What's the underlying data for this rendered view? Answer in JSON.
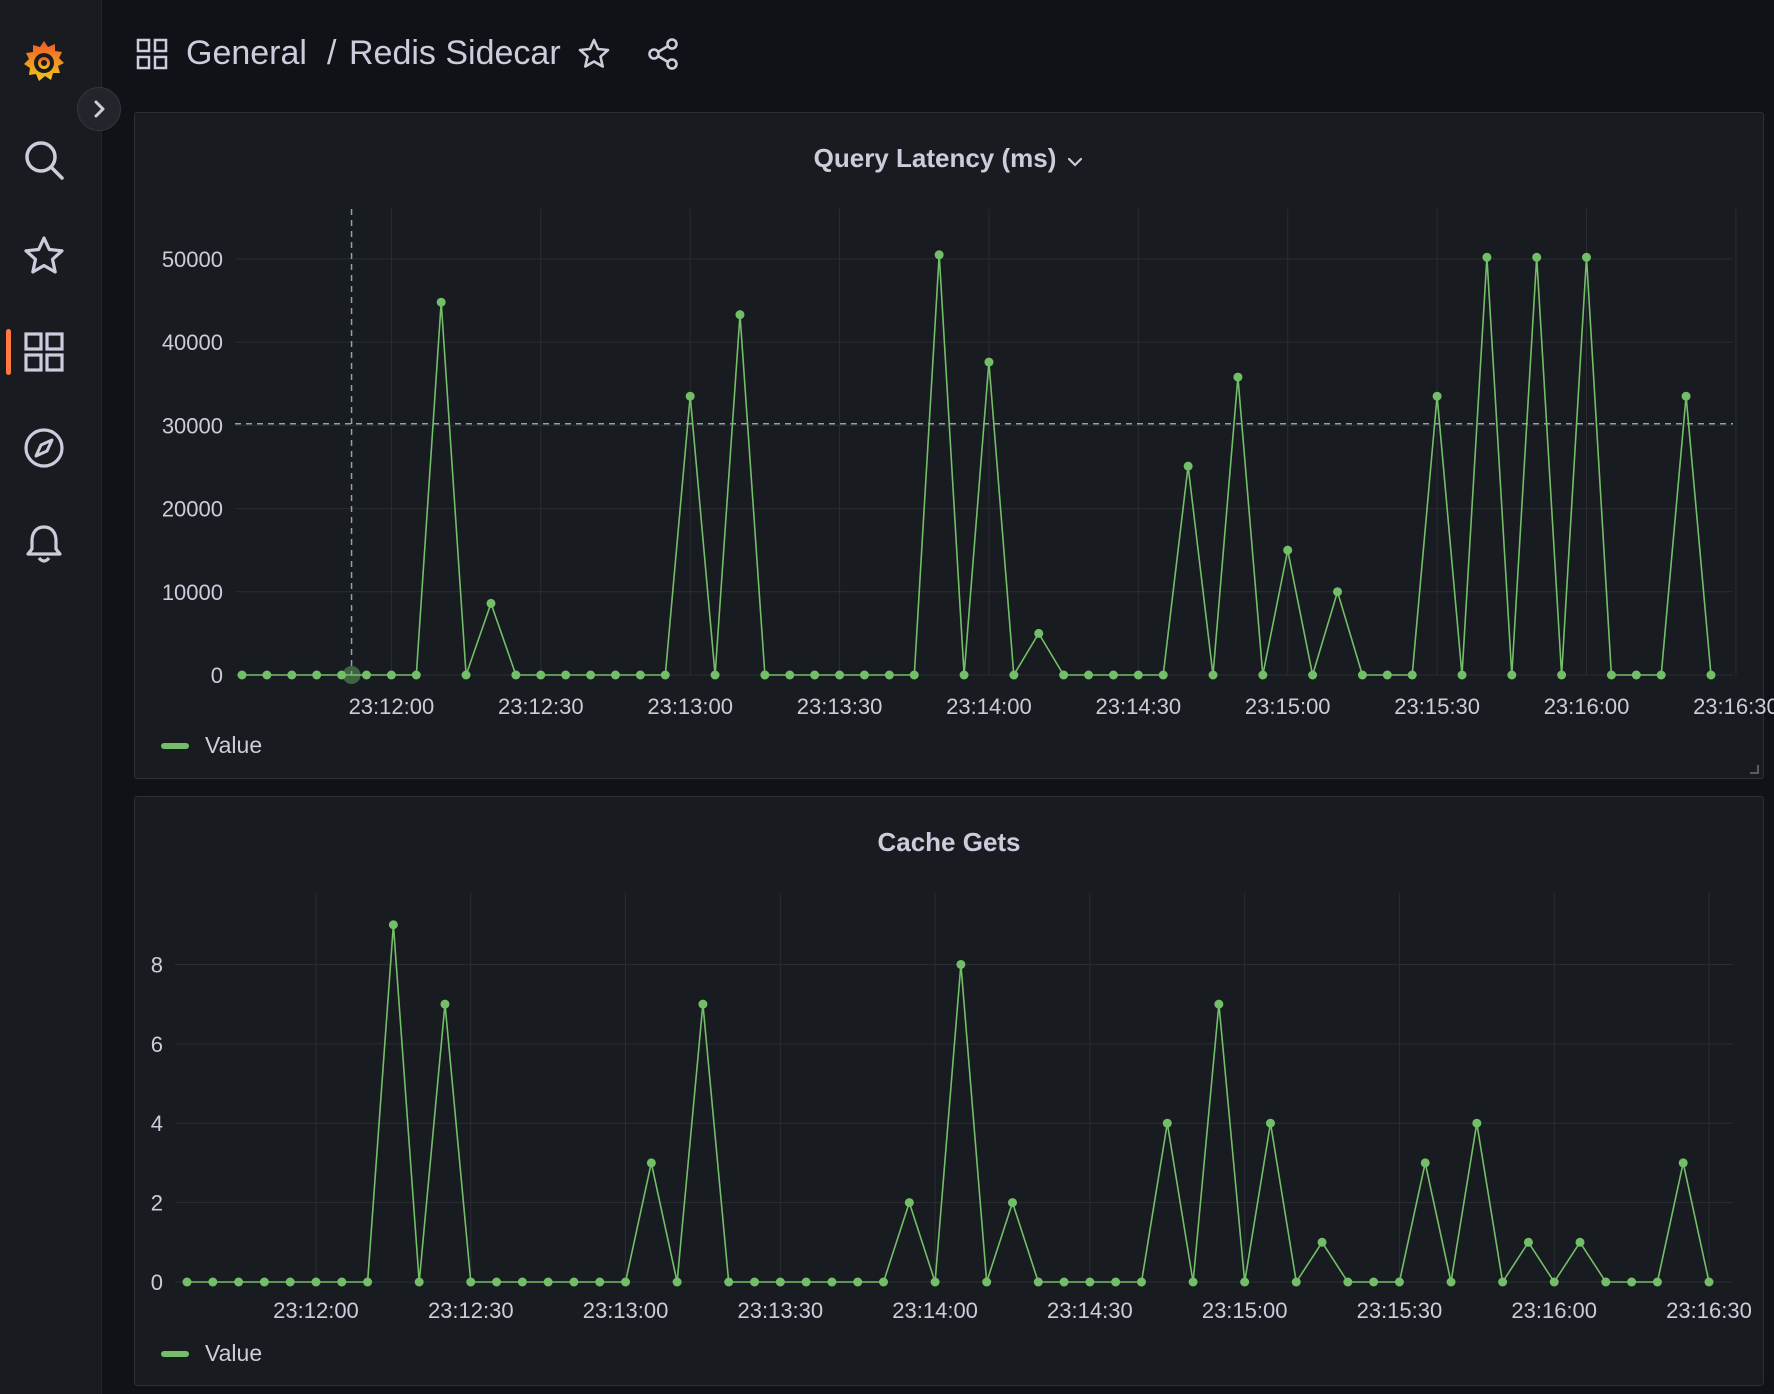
{
  "breadcrumb": {
    "folder": "General",
    "separator": "/",
    "dashboard": "Redis Sidecar"
  },
  "icons": {
    "logo": "grafana-logo",
    "search": "search-icon",
    "starred": "star-icon",
    "dashboards": "dashboards-grid-icon",
    "explore": "compass-icon",
    "alerting": "bell-icon",
    "expand": "chevron-right-icon",
    "share": "share-icon",
    "panel_menu": "chevron-down-icon"
  },
  "colors": {
    "series": "#73bf69",
    "accent": "#ff7941",
    "background": "#111217",
    "panel": "#181b1f"
  },
  "panels": [
    {
      "title": "Query Latency (ms)",
      "legend": "Value",
      "chart_data": {
        "type": "line",
        "title": "Query Latency (ms)",
        "xlabel": "",
        "ylabel": "",
        "x_start": "23:11:30",
        "x_step_seconds": 5,
        "x_ticks": [
          "23:12:00",
          "23:12:30",
          "23:13:00",
          "23:13:30",
          "23:14:00",
          "23:14:30",
          "23:15:00",
          "23:15:30",
          "23:16:00",
          "23:16:30"
        ],
        "y_ticks": [
          0,
          10000,
          20000,
          30000,
          40000,
          50000
        ],
        "ylim": [
          0,
          56000
        ],
        "threshold": 30200,
        "crosshair_x": "23:11:52",
        "series": [
          {
            "name": "Value",
            "values": [
              0,
              0,
              0,
              0,
              0,
              0,
              0,
              0,
              44800,
              0,
              8600,
              0,
              0,
              0,
              0,
              0,
              0,
              0,
              33500,
              0,
              43300,
              0,
              0,
              0,
              0,
              0,
              0,
              0,
              50500,
              0,
              37600,
              0,
              5000,
              0,
              0,
              0,
              0,
              0,
              25100,
              0,
              35800,
              0,
              15000,
              0,
              10000,
              0,
              0,
              0,
              33500,
              0,
              50200,
              0,
              50200,
              0,
              50200,
              0,
              0,
              0,
              33500,
              0
            ]
          }
        ],
        "grid": true,
        "legend_position": "bottom-left"
      }
    },
    {
      "title": "Cache Gets",
      "legend": "Value",
      "chart_data": {
        "type": "line",
        "title": "Cache Gets",
        "xlabel": "",
        "ylabel": "",
        "x_start": "23:11:35",
        "x_step_seconds": 5,
        "x_ticks": [
          "23:12:00",
          "23:12:30",
          "23:13:00",
          "23:13:30",
          "23:14:00",
          "23:14:30",
          "23:15:00",
          "23:15:30",
          "23:16:00",
          "23:16:30"
        ],
        "y_ticks": [
          0,
          2,
          4,
          6,
          8
        ],
        "ylim": [
          0,
          9.8
        ],
        "series": [
          {
            "name": "Value",
            "values": [
              0,
              0,
              0,
              0,
              0,
              0,
              0,
              0,
              9,
              0,
              7,
              0,
              0,
              0,
              0,
              0,
              0,
              0,
              3,
              0,
              7,
              0,
              0,
              0,
              0,
              0,
              0,
              0,
              2,
              0,
              8,
              0,
              2,
              0,
              0,
              0,
              0,
              0,
              4,
              0,
              7,
              0,
              4,
              0,
              1,
              0,
              0,
              0,
              3,
              0,
              4,
              0,
              1,
              0,
              1,
              0,
              0,
              0,
              3,
              0
            ]
          }
        ],
        "grid": true,
        "legend_position": "bottom-left"
      }
    }
  ]
}
